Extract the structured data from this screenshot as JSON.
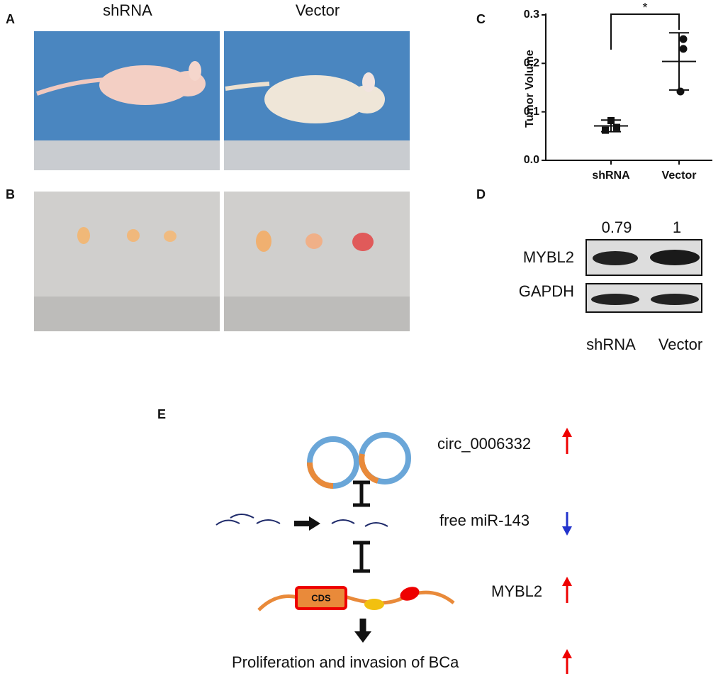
{
  "panels": {
    "a": "A",
    "b": "B",
    "c": "C",
    "d": "D",
    "e": "E"
  },
  "photos": {
    "left_title": "shRNA",
    "right_title": "Vector"
  },
  "chart_data": {
    "type": "dot",
    "ylabel": "Tumor Volume",
    "categories": [
      "shRNA",
      "Vector"
    ],
    "points": [
      [
        0.082,
        0.062,
        0.068
      ],
      [
        0.25,
        0.23,
        0.142
      ]
    ],
    "markers": [
      "square",
      "circle"
    ],
    "means": [
      0.071,
      0.204
    ],
    "errors": [
      0.012,
      0.059
    ],
    "ylim": [
      0,
      0.3
    ],
    "yticks": [
      {
        "value": 0,
        "label": "0.0"
      },
      0.1,
      0.2,
      0.3
    ],
    "annotation": "*",
    "color": "#111111"
  },
  "blot": {
    "ratios": [
      "0.79",
      "1"
    ],
    "rows": [
      "MYBL2",
      "GAPDH"
    ],
    "lanes": [
      "shRNA",
      "Vector"
    ]
  },
  "diagram": {
    "circ": "circ_0006332",
    "mir": "free miR-143",
    "mybl2": "MYBL2",
    "cds": "CDS",
    "outcome": "Proliferation and invasion of BCa"
  }
}
